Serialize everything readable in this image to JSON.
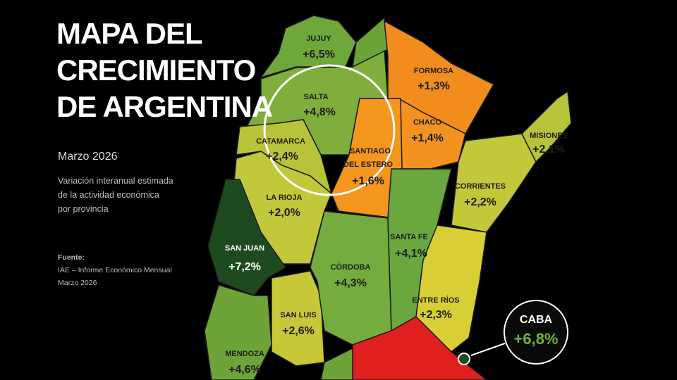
{
  "header": {
    "title_lines": [
      "MAPA DEL",
      "CRECIMIENTO",
      "DE ARGENTINA"
    ],
    "date": "Marzo 2026",
    "description_lines": [
      "Variación interanual estimada",
      "de la actividad económica",
      "por provincia"
    ]
  },
  "source": {
    "label": "Fuente:",
    "lines": [
      "IAE – Informe Económico Mensual",
      "Marzo 2026"
    ]
  },
  "provinces": [
    {
      "name_lines": [
        "JUJUY"
      ],
      "value": "+6,5%"
    },
    {
      "name_lines": [
        "FORMOSA"
      ],
      "value": "+1,3%"
    },
    {
      "name_lines": [
        "SALTA"
      ],
      "value": "+4,8%"
    },
    {
      "name_lines": [
        "CHACO"
      ],
      "value": "+1,4%"
    },
    {
      "name_lines": [
        "CATAMARCA"
      ],
      "value": "+2,4%"
    },
    {
      "name_lines": [
        "SANTIAGO",
        "DEL ESTERO"
      ],
      "value": "+1,6%"
    },
    {
      "name_lines": [
        "MISIONES"
      ],
      "value": "+2,1%"
    },
    {
      "name_lines": [
        "LA RIOJA"
      ],
      "value": "+2,0%"
    },
    {
      "name_lines": [
        "CORRIENTES"
      ],
      "value": "+2,2%"
    },
    {
      "name_lines": [
        "SAN JUAN"
      ],
      "value": "+7,2%"
    },
    {
      "name_lines": [
        "SANTA FE"
      ],
      "value": "+4,1%"
    },
    {
      "name_lines": [
        "CÓRDOBA"
      ],
      "value": "+4,3%"
    },
    {
      "name_lines": [
        "ENTRE RÍOS"
      ],
      "value": "+2,3%"
    },
    {
      "name_lines": [
        "SAN LUIS"
      ],
      "value": "+2,6%"
    },
    {
      "name_lines": [
        "MENDOZA"
      ],
      "value": "+4,6%"
    }
  ],
  "inset": {
    "name": "CABA",
    "value": "+6,8%"
  }
}
